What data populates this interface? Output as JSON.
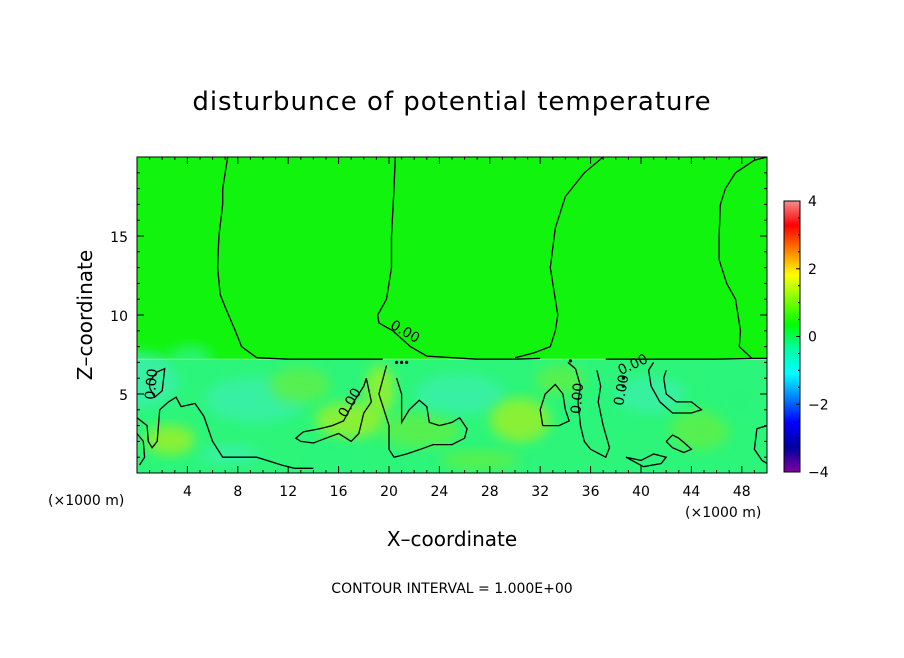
{
  "chart_data": {
    "type": "heatmap",
    "title": "disturbunce of potential temperature",
    "xlabel": "X–coordinate",
    "ylabel": "Z–coordinate",
    "x_unit": "(×1000 m)",
    "x_unit_right": "(×1000 m)",
    "xlim": [
      0,
      50
    ],
    "ylim": [
      0,
      20
    ],
    "xticks": [
      4,
      8,
      12,
      16,
      20,
      24,
      28,
      32,
      36,
      40,
      44,
      48
    ],
    "yticks": [
      5,
      10,
      15
    ],
    "colorbar": {
      "range": [
        -4,
        4
      ],
      "ticks": [
        4,
        2,
        0,
        -2,
        -4
      ],
      "colors": [
        "#f48c8c",
        "#ff0000",
        "#ff7f00",
        "#ffff00",
        "#7fff00",
        "#00ff00",
        "#00ffa0",
        "#00ffff",
        "#0080ff",
        "#0000ff",
        "#0000a0",
        "#7f00a0"
      ]
    },
    "field": {
      "upper_layer": {
        "z_range": [
          7.2,
          20
        ],
        "value": 0.0,
        "color": "#11f40e"
      },
      "lower_layer": {
        "z_range": [
          0,
          7.2
        ],
        "value_range": [
          -1,
          1
        ],
        "colors": [
          "#11f40e",
          "#2cf57a",
          "#5df04a",
          "#9af02a",
          "#3af0a8"
        ]
      }
    },
    "contours": {
      "level": 0.0,
      "label": "0.00",
      "labels_shown": 6
    },
    "contour_interval": "CONTOUR INTERVAL = 1.000E+00",
    "grid": false
  }
}
